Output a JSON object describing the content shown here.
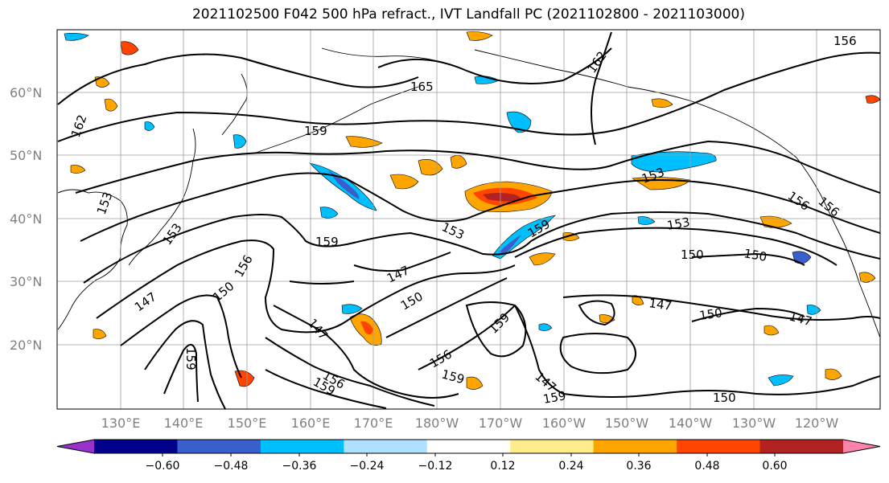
{
  "title": "2021102500 F042 500 hPa refract., IVT Landfall PC (2021102800 - 2021103000)",
  "map": {
    "lat_labels": [
      "60°N",
      "50°N",
      "40°N",
      "30°N",
      "20°N"
    ],
    "lon_labels": [
      "130°E",
      "140°E",
      "150°E",
      "160°E",
      "170°E",
      "180°W",
      "170°W",
      "160°W",
      "150°W",
      "140°W",
      "130°W",
      "120°W"
    ],
    "contour_labels": [
      "165",
      "162",
      "162",
      "159",
      "159",
      "159",
      "159",
      "159",
      "156",
      "156",
      "156",
      "156",
      "156",
      "153",
      "153",
      "153",
      "153",
      "150",
      "150",
      "150",
      "150",
      "150",
      "147",
      "147",
      "147",
      "147",
      "147",
      "156",
      "159",
      "150",
      "159",
      "159",
      "153",
      "147"
    ]
  },
  "colorbar": {
    "tick_labels": [
      "−0.60",
      "−0.48",
      "−0.36",
      "−0.24",
      "−0.12",
      "0.12",
      "0.24",
      "0.36",
      "0.48",
      "0.60"
    ],
    "colors": [
      "#9932cc",
      "#00008b",
      "#3a5fcd",
      "#00bfff",
      "#b0e2ff",
      "#ffffff",
      "#ffec8b",
      "#ffa500",
      "#ff4500",
      "#b22222",
      "#ff82ab"
    ]
  },
  "colors": {
    "contour": "#000000",
    "grid": "#9e9e9e",
    "axis_label": "#808080"
  }
}
